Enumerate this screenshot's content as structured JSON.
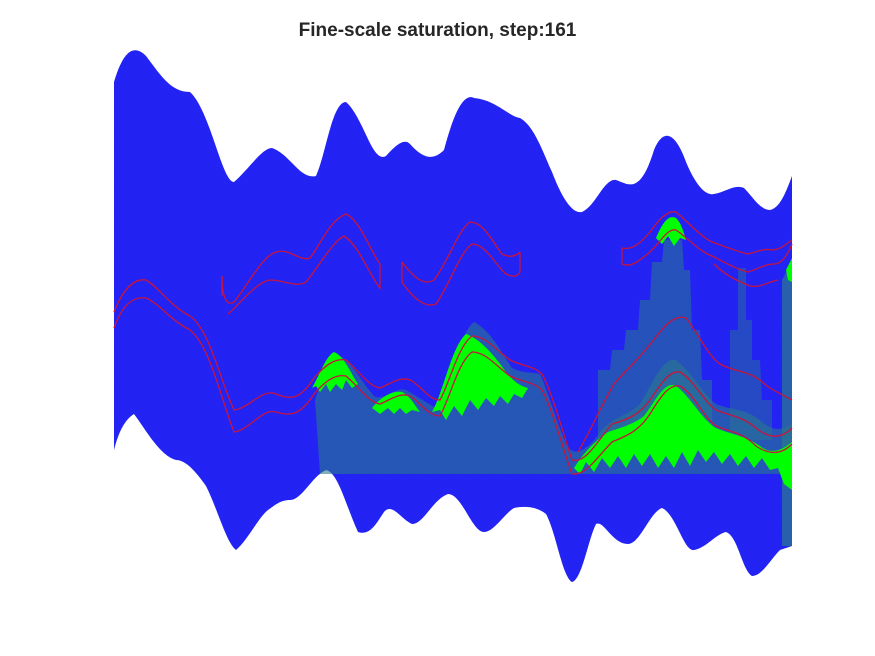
{
  "figure": {
    "title": "Fine-scale saturation, step:161"
  },
  "colors": {
    "background": "#ffffff",
    "domain": "#2323f5",
    "plume": "#00ff00",
    "transition": "#2a7a8c",
    "front_line": "#c8143c"
  }
}
